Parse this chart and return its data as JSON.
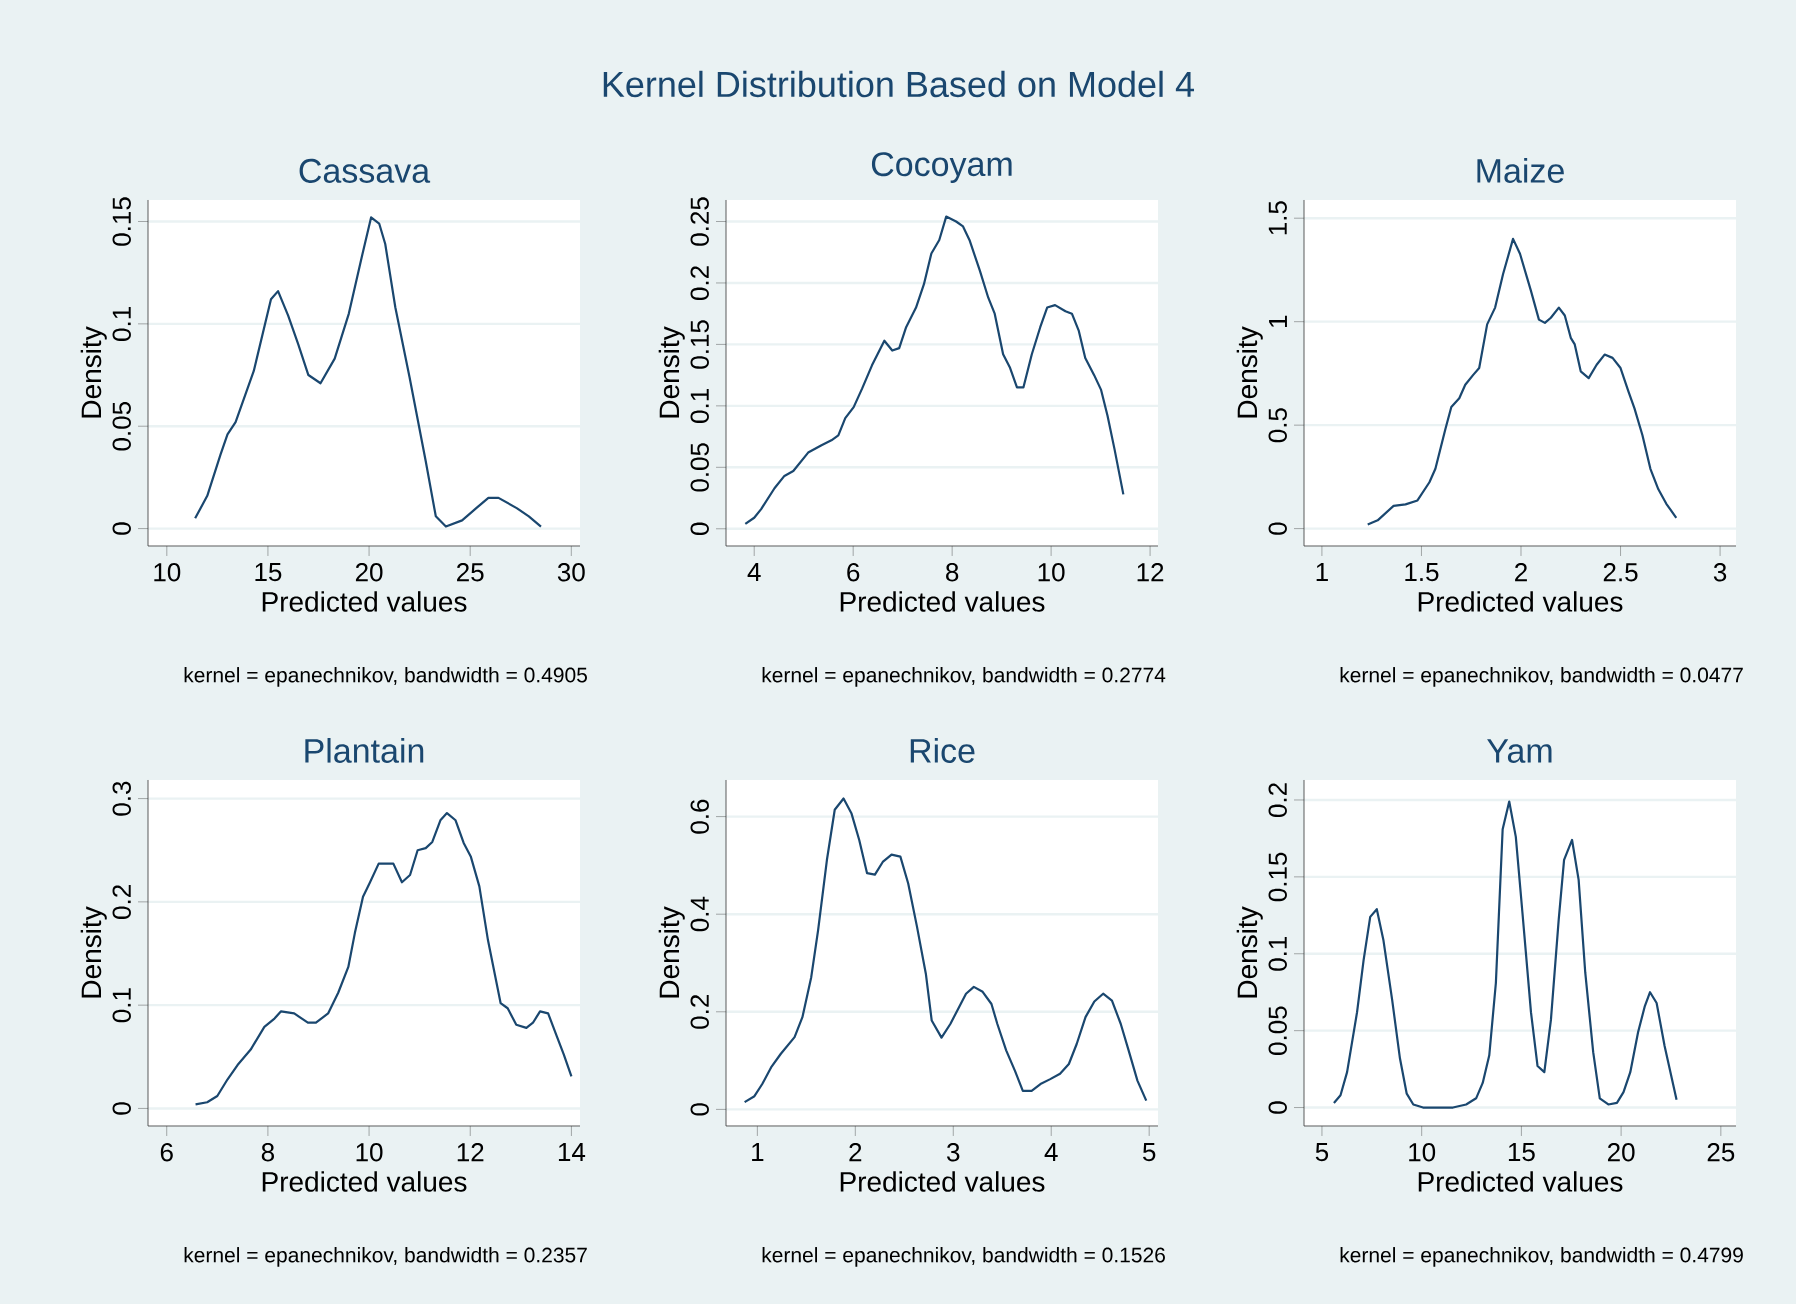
{
  "chart_data": [
    {
      "type": "other",
      "title": "Kernel Distribution Based on Model 4"
    },
    {
      "type": "line",
      "title": "Cassava",
      "xlabel": "Predicted values",
      "ylabel": "Density",
      "annotations": [
        "kernel = epanechnikov, bandwidth = 0.4905"
      ],
      "color": "#1a476f",
      "grid": "y",
      "xlim": [
        9.07,
        30.43
      ],
      "ylim": [
        -0.0085,
        0.1605
      ],
      "xticks": [
        10,
        15,
        20,
        25,
        30
      ],
      "yticks": [
        0,
        0.05,
        0.1,
        0.15
      ],
      "x": [
        11.4,
        12.0,
        12.65,
        13.0,
        13.4,
        14.3,
        15.15,
        15.5,
        16.0,
        16.5,
        17.0,
        17.6,
        18.3,
        19.0,
        19.6,
        20.1,
        20.5,
        20.8,
        21.3,
        22.0,
        22.8,
        23.3,
        23.8,
        24.6,
        25.3,
        25.9,
        26.4,
        27.3,
        27.9,
        28.5
      ],
      "values": [
        0.005,
        0.016,
        0.036,
        0.046,
        0.052,
        0.077,
        0.112,
        0.116,
        0.104,
        0.09,
        0.075,
        0.071,
        0.083,
        0.105,
        0.131,
        0.152,
        0.149,
        0.139,
        0.108,
        0.074,
        0.033,
        0.006,
        0.001,
        0.004,
        0.01,
        0.015,
        0.015,
        0.01,
        0.006,
        0.001
      ]
    },
    {
      "type": "line",
      "title": "Cocoyam",
      "xlabel": "Predicted values",
      "ylabel": "Density",
      "annotations": [
        "kernel = epanechnikov, bandwidth = 0.2774"
      ],
      "color": "#1a476f",
      "grid": "y",
      "xlim": [
        3.43,
        12.16
      ],
      "ylim": [
        -0.014,
        0.2675
      ],
      "xticks": [
        4,
        6,
        8,
        10,
        12
      ],
      "yticks": [
        0,
        0.05,
        0.1,
        0.15,
        0.2,
        0.25
      ],
      "x": [
        3.82,
        4.0,
        4.14,
        4.41,
        4.61,
        4.79,
        5.09,
        5.36,
        5.56,
        5.7,
        5.84,
        6.01,
        6.18,
        6.38,
        6.63,
        6.79,
        6.93,
        7.07,
        7.27,
        7.43,
        7.58,
        7.74,
        7.88,
        8.08,
        8.22,
        8.35,
        8.56,
        8.73,
        8.86,
        9.03,
        9.17,
        9.31,
        9.44,
        9.61,
        9.78,
        9.92,
        10.08,
        10.29,
        10.42,
        10.56,
        10.69,
        10.87,
        11.01,
        11.14,
        11.28,
        11.46
      ],
      "values": [
        0.004,
        0.009,
        0.016,
        0.033,
        0.043,
        0.047,
        0.062,
        0.068,
        0.072,
        0.076,
        0.09,
        0.099,
        0.114,
        0.133,
        0.153,
        0.145,
        0.147,
        0.164,
        0.18,
        0.199,
        0.224,
        0.235,
        0.254,
        0.25,
        0.246,
        0.235,
        0.21,
        0.188,
        0.175,
        0.142,
        0.131,
        0.115,
        0.115,
        0.142,
        0.164,
        0.18,
        0.182,
        0.177,
        0.175,
        0.161,
        0.139,
        0.125,
        0.113,
        0.092,
        0.065,
        0.028
      ]
    },
    {
      "type": "line",
      "title": "Maize",
      "xlabel": "Predicted values",
      "ylabel": "Density",
      "annotations": [
        "kernel = epanechnikov, bandwidth = 0.0477"
      ],
      "color": "#1a476f",
      "grid": "y",
      "xlim": [
        0.91,
        3.08
      ],
      "ylim": [
        -0.084,
        1.588
      ],
      "xticks": [
        1,
        1.5,
        2,
        2.5,
        3
      ],
      "yticks": [
        0,
        0.5,
        1,
        1.5
      ],
      "x": [
        1.23,
        1.28,
        1.36,
        1.42,
        1.48,
        1.54,
        1.57,
        1.62,
        1.65,
        1.69,
        1.72,
        1.76,
        1.79,
        1.83,
        1.87,
        1.91,
        1.96,
        1.995,
        2.03,
        2.05,
        2.09,
        2.12,
        2.15,
        2.19,
        2.22,
        2.25,
        2.27,
        2.3,
        2.34,
        2.38,
        2.42,
        2.46,
        2.5,
        2.54,
        2.57,
        2.61,
        2.65,
        2.69,
        2.73,
        2.78
      ],
      "values": [
        0.02,
        0.04,
        0.11,
        0.117,
        0.136,
        0.224,
        0.289,
        0.48,
        0.588,
        0.63,
        0.695,
        0.743,
        0.776,
        0.987,
        1.068,
        1.23,
        1.4,
        1.328,
        1.214,
        1.149,
        1.01,
        0.994,
        1.019,
        1.068,
        1.03,
        0.922,
        0.89,
        0.76,
        0.727,
        0.792,
        0.841,
        0.825,
        0.776,
        0.662,
        0.581,
        0.451,
        0.289,
        0.19,
        0.12,
        0.052
      ]
    },
    {
      "type": "line",
      "title": "Plantain",
      "xlabel": "Predicted values",
      "ylabel": "Density",
      "annotations": [
        "kernel = epanechnikov, bandwidth = 0.2357"
      ],
      "color": "#1a476f",
      "grid": "y",
      "xlim": [
        5.63,
        14.17
      ],
      "ylim": [
        -0.017,
        0.318
      ],
      "xticks": [
        6,
        8,
        10,
        12,
        14
      ],
      "yticks": [
        0,
        0.1,
        0.2,
        0.3
      ],
      "x": [
        6.57,
        6.8,
        7.0,
        7.2,
        7.4,
        7.66,
        7.93,
        8.13,
        8.26,
        8.52,
        8.79,
        8.95,
        9.19,
        9.39,
        9.59,
        9.72,
        9.88,
        10.01,
        10.19,
        10.48,
        10.65,
        10.81,
        10.96,
        11.12,
        11.25,
        11.41,
        11.54,
        11.71,
        11.87,
        12.01,
        12.18,
        12.35,
        12.6,
        12.74,
        12.91,
        13.11,
        13.24,
        13.38,
        13.54,
        13.71,
        13.85,
        14.0
      ],
      "values": [
        0.004,
        0.006,
        0.012,
        0.028,
        0.042,
        0.057,
        0.079,
        0.087,
        0.094,
        0.092,
        0.083,
        0.083,
        0.092,
        0.112,
        0.137,
        0.17,
        0.205,
        0.218,
        0.237,
        0.237,
        0.219,
        0.226,
        0.25,
        0.252,
        0.258,
        0.279,
        0.286,
        0.279,
        0.257,
        0.244,
        0.215,
        0.163,
        0.102,
        0.097,
        0.081,
        0.078,
        0.083,
        0.094,
        0.092,
        0.07,
        0.052,
        0.031
      ]
    },
    {
      "type": "line",
      "title": "Rice",
      "xlabel": "Predicted values",
      "ylabel": "Density",
      "annotations": [
        "kernel = epanechnikov, bandwidth = 0.1526"
      ],
      "color": "#1a476f",
      "grid": "y",
      "xlim": [
        0.68,
        5.09
      ],
      "ylim": [
        -0.034,
        0.675
      ],
      "xticks": [
        1,
        2,
        3,
        4,
        5
      ],
      "yticks": [
        0,
        0.2,
        0.4,
        0.6
      ],
      "x": [
        0.87,
        0.97,
        1.05,
        1.14,
        1.24,
        1.38,
        1.46,
        1.55,
        1.62,
        1.71,
        1.79,
        1.88,
        1.96,
        2.04,
        2.12,
        2.2,
        2.28,
        2.37,
        2.46,
        2.54,
        2.63,
        2.72,
        2.78,
        2.88,
        2.97,
        3.06,
        3.13,
        3.21,
        3.3,
        3.39,
        3.45,
        3.54,
        3.63,
        3.71,
        3.8,
        3.89,
        3.99,
        4.09,
        4.18,
        4.26,
        4.35,
        4.44,
        4.53,
        4.62,
        4.71,
        4.79,
        4.88,
        4.97
      ],
      "values": [
        0.015,
        0.027,
        0.052,
        0.086,
        0.114,
        0.148,
        0.189,
        0.271,
        0.367,
        0.511,
        0.614,
        0.637,
        0.607,
        0.552,
        0.484,
        0.481,
        0.507,
        0.522,
        0.518,
        0.463,
        0.374,
        0.278,
        0.182,
        0.147,
        0.175,
        0.21,
        0.237,
        0.251,
        0.241,
        0.216,
        0.175,
        0.121,
        0.079,
        0.038,
        0.038,
        0.052,
        0.062,
        0.073,
        0.093,
        0.134,
        0.189,
        0.221,
        0.237,
        0.223,
        0.175,
        0.121,
        0.059,
        0.018
      ]
    },
    {
      "type": "line",
      "title": "Yam",
      "xlabel": "Predicted values",
      "ylabel": "Density",
      "annotations": [
        "kernel = epanechnikov, bandwidth = 0.4799"
      ],
      "color": "#1a476f",
      "grid": "y",
      "xlim": [
        4.1,
        25.76
      ],
      "ylim": [
        -0.012,
        0.213
      ],
      "xticks": [
        5,
        10,
        15,
        20,
        25
      ],
      "yticks": [
        0,
        0.05,
        0.1,
        0.15,
        0.2
      ],
      "x": [
        5.6,
        5.93,
        6.26,
        6.76,
        7.09,
        7.42,
        7.75,
        8.08,
        8.52,
        8.91,
        9.25,
        9.58,
        10.07,
        11.57,
        12.23,
        12.73,
        13.06,
        13.39,
        13.72,
        14.06,
        14.39,
        14.72,
        15.05,
        15.48,
        15.81,
        16.15,
        16.48,
        16.87,
        17.14,
        17.54,
        17.87,
        18.2,
        18.6,
        18.93,
        19.36,
        19.79,
        20.12,
        20.46,
        20.85,
        21.19,
        21.45,
        21.78,
        22.18,
        22.78
      ],
      "values": [
        0.003,
        0.008,
        0.023,
        0.062,
        0.096,
        0.124,
        0.129,
        0.109,
        0.07,
        0.032,
        0.009,
        0.002,
        0.0,
        0.0,
        0.002,
        0.006,
        0.016,
        0.034,
        0.081,
        0.181,
        0.199,
        0.176,
        0.127,
        0.062,
        0.027,
        0.023,
        0.057,
        0.122,
        0.161,
        0.174,
        0.148,
        0.088,
        0.036,
        0.006,
        0.002,
        0.003,
        0.01,
        0.023,
        0.049,
        0.066,
        0.075,
        0.068,
        0.04,
        0.005
      ]
    }
  ]
}
